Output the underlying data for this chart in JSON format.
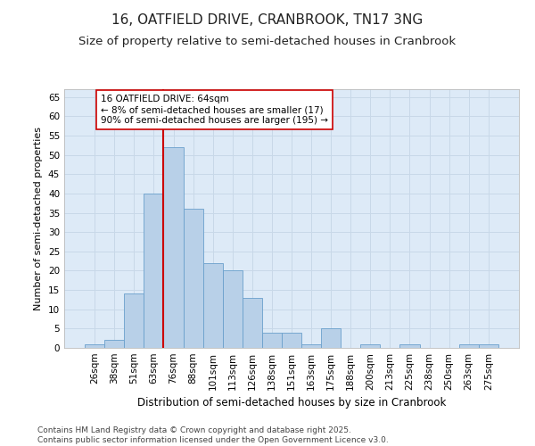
{
  "title1": "16, OATFIELD DRIVE, CRANBROOK, TN17 3NG",
  "title2": "Size of property relative to semi-detached houses in Cranbrook",
  "xlabel": "Distribution of semi-detached houses by size in Cranbrook",
  "ylabel": "Number of semi-detached properties",
  "categories": [
    "26sqm",
    "38sqm",
    "51sqm",
    "63sqm",
    "76sqm",
    "88sqm",
    "101sqm",
    "113sqm",
    "126sqm",
    "138sqm",
    "151sqm",
    "163sqm",
    "175sqm",
    "188sqm",
    "200sqm",
    "213sqm",
    "225sqm",
    "238sqm",
    "250sqm",
    "263sqm",
    "275sqm"
  ],
  "values": [
    1,
    2,
    14,
    40,
    52,
    36,
    22,
    20,
    13,
    4,
    4,
    1,
    5,
    0,
    1,
    0,
    1,
    0,
    0,
    1,
    1
  ],
  "bar_color": "#b8d0e8",
  "bar_edgecolor": "#6aa0cc",
  "grid_color": "#c8d8e8",
  "background_color": "#ddeaf7",
  "annotation_text": "16 OATFIELD DRIVE: 64sqm\n← 8% of semi-detached houses are smaller (17)\n90% of semi-detached houses are larger (195) →",
  "vline_x_index": 3.5,
  "vline_color": "#cc0000",
  "box_color": "#cc0000",
  "ylim": [
    0,
    67
  ],
  "yticks": [
    0,
    5,
    10,
    15,
    20,
    25,
    30,
    35,
    40,
    45,
    50,
    55,
    60,
    65
  ],
  "footer": "Contains HM Land Registry data © Crown copyright and database right 2025.\nContains public sector information licensed under the Open Government Licence v3.0.",
  "title1_fontsize": 11,
  "title2_fontsize": 9.5,
  "xlabel_fontsize": 8.5,
  "ylabel_fontsize": 8,
  "tick_fontsize": 7.5,
  "annotation_fontsize": 7.5,
  "footer_fontsize": 6.5
}
